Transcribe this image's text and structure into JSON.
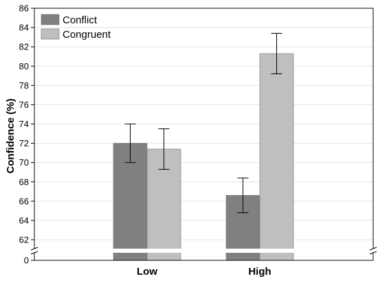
{
  "chart_data": {
    "type": "bar",
    "title": "",
    "xlabel": "",
    "ylabel": "Confidence (%)",
    "categories": [
      "Low",
      "High"
    ],
    "series": [
      {
        "name": "Conflict",
        "color": "#808080",
        "values": [
          72.0,
          66.6
        ],
        "error": [
          2.0,
          1.8
        ]
      },
      {
        "name": "Congruent",
        "color": "#bfbfbf",
        "values": [
          71.4,
          81.3
        ],
        "error": [
          2.1,
          2.1
        ]
      }
    ],
    "ylim": [
      62,
      86
    ],
    "yticks": [
      62,
      64,
      66,
      68,
      70,
      72,
      74,
      76,
      78,
      80,
      82,
      84,
      86
    ],
    "axis_break": true,
    "baseline_tick": 0,
    "grid": "horizontal",
    "legend_position": "top-left"
  }
}
